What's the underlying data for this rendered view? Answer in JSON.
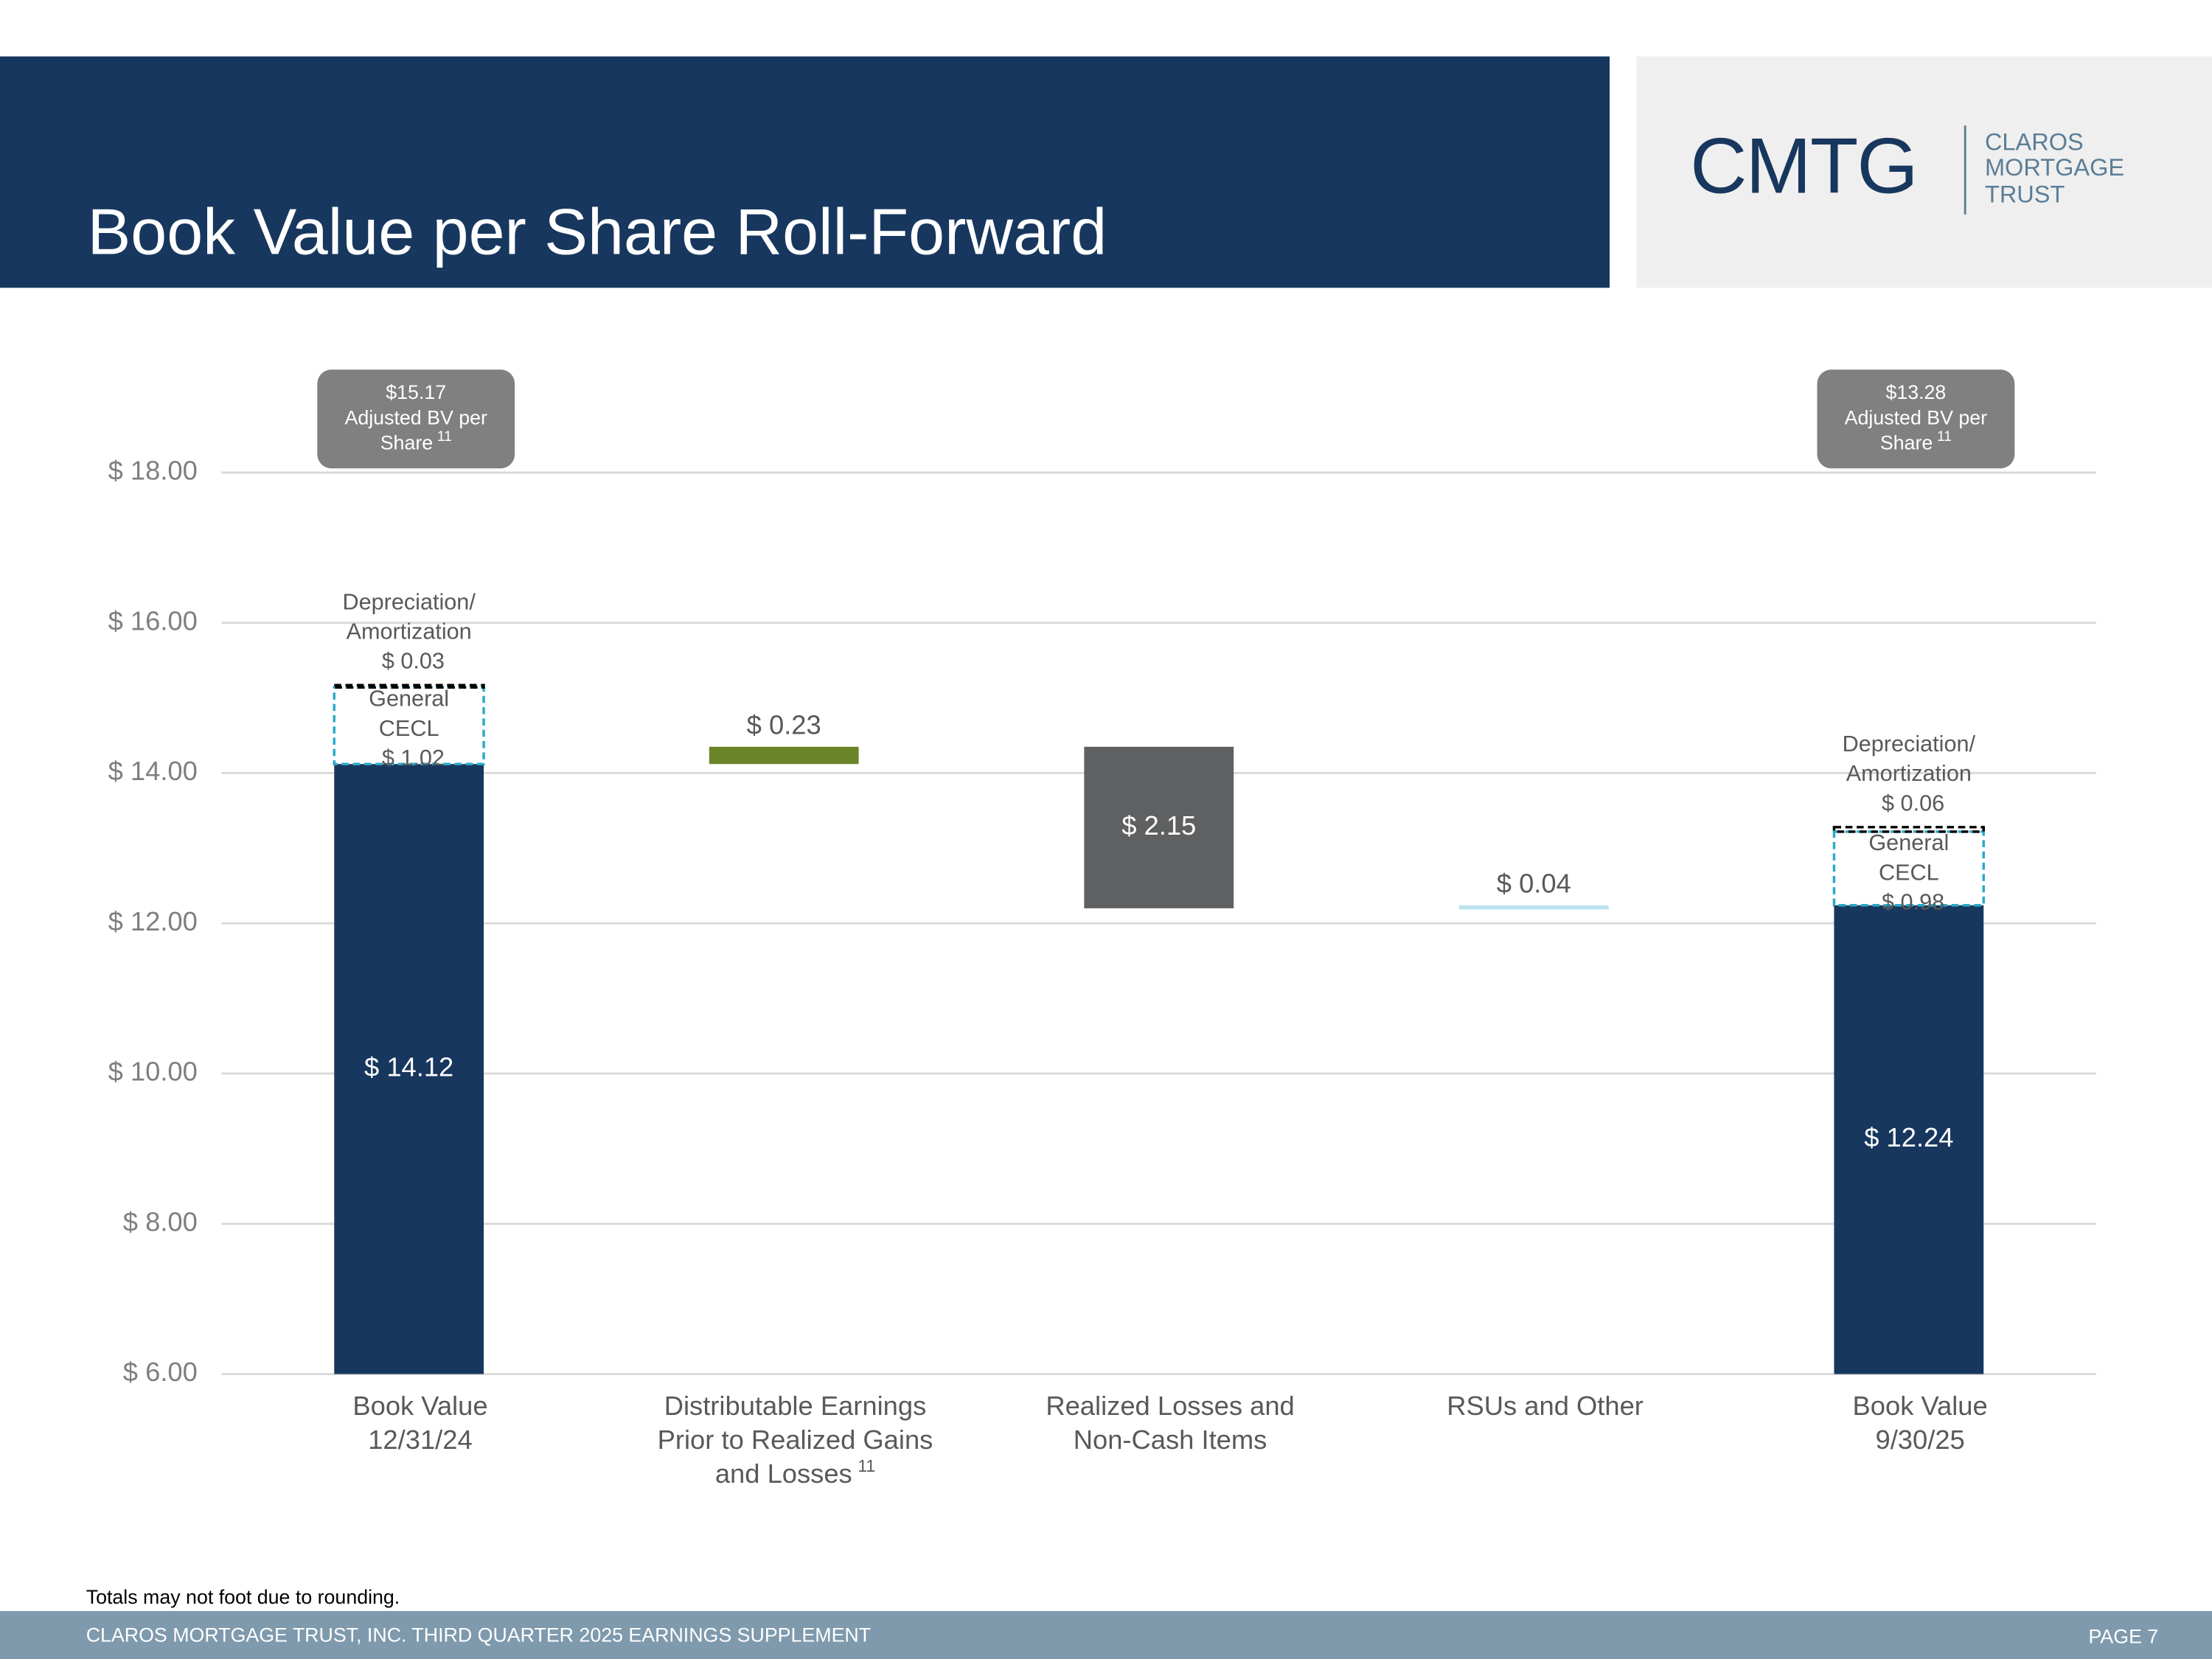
{
  "header": {
    "title": "Book Value per Share Roll-Forward"
  },
  "logo": {
    "mark": "CMTG",
    "lines": [
      "CLAROS",
      "MORTGAGE",
      "TRUST"
    ]
  },
  "footer": {
    "note": "Totals may not foot due to rounding.",
    "text": "CLAROS MORTGAGE TRUST, INC. THIRD QUARTER 2025 EARNINGS SUPPLEMENT",
    "page": "PAGE 7"
  },
  "chart_data": {
    "type": "waterfall",
    "categories": [
      [
        "Book Value",
        "12/31/24"
      ],
      [
        "Distributable Earnings",
        "Prior to Realized Gains",
        "and Losses"
      ],
      [
        "Realized Losses and",
        "Non-Cash Items"
      ],
      [
        "RSUs and Other"
      ],
      [
        "Book Value",
        "9/30/25"
      ]
    ],
    "category_footnotes": {
      "1": "11"
    },
    "measure": [
      "absolute",
      "relative",
      "relative",
      "relative",
      "absolute"
    ],
    "values": [
      14.12,
      0.23,
      -2.15,
      0.04,
      12.24
    ],
    "value_labels": [
      "$ 14.12",
      "$ 0.23",
      "$ 2.15",
      "$ 0.04",
      "$ 12.24"
    ],
    "colors": [
      "#17375e",
      "#6b8428",
      "#5f6062",
      "#bde3ef",
      "#17375e"
    ],
    "adjustments": [
      {
        "category": 0,
        "name": [
          "General",
          "CECL"
        ],
        "value": 1.02,
        "value_label": "$ 1.02",
        "color": "#2aa9c9"
      },
      {
        "category": 0,
        "name": [
          "Depreciation/",
          "Amortization"
        ],
        "value": 0.03,
        "value_label": "$ 0.03",
        "color": "#000000"
      },
      {
        "category": 4,
        "name": [
          "General",
          "CECL"
        ],
        "value": 0.98,
        "value_label": "$ 0.98",
        "color": "#2aa9c9"
      },
      {
        "category": 4,
        "name": [
          "Depreciation/",
          "Amortization"
        ],
        "value": 0.06,
        "value_label": "$ 0.06",
        "color": "#000000"
      }
    ],
    "callouts": [
      {
        "category": 0,
        "lines": [
          "$15.17",
          "Adjusted BV per",
          "Share"
        ],
        "note": "11"
      },
      {
        "category": 4,
        "lines": [
          "$13.28",
          "Adjusted BV per",
          "Share"
        ],
        "note": "11"
      }
    ],
    "ylim": [
      6,
      18
    ],
    "yticks": [
      {
        "value": 6,
        "label": "$ 6.00"
      },
      {
        "value": 8,
        "label": "$ 8.00"
      },
      {
        "value": 10,
        "label": "$ 10.00"
      },
      {
        "value": 12,
        "label": "$ 12.00"
      },
      {
        "value": 14,
        "label": "$ 14.00"
      },
      {
        "value": 16,
        "label": "$ 16.00"
      },
      {
        "value": 18,
        "label": "$ 18.00"
      }
    ],
    "grid": true
  }
}
